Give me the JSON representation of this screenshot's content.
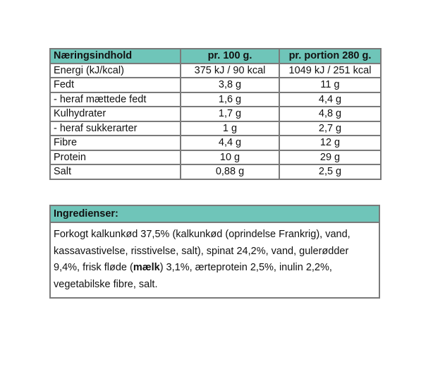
{
  "nutrition": {
    "headers": [
      "Næringsindhold",
      "pr. 100 g.",
      "pr. portion 280 g."
    ],
    "rows": [
      {
        "label": "Energi (kJ/kcal)",
        "per100": "375 kJ / 90 kcal",
        "perPortion": "1049 kJ / 251 kcal"
      },
      {
        "label": "Fedt",
        "per100": "3,8 g",
        "perPortion": "11 g"
      },
      {
        "label": " - heraf mættede fedt",
        "per100": "1,6 g",
        "perPortion": "4,4 g"
      },
      {
        "label": "Kulhydrater",
        "per100": "1,7 g",
        "perPortion": "4,8 g"
      },
      {
        "label": " - heraf sukkerarter",
        "per100": "1 g",
        "perPortion": "2,7 g"
      },
      {
        "label": "Fibre",
        "per100": "4,4 g",
        "perPortion": "12 g"
      },
      {
        "label": "Protein",
        "per100": "10 g",
        "perPortion": "29 g"
      },
      {
        "label": "Salt",
        "per100": "0,88 g",
        "perPortion": "2,5 g"
      }
    ]
  },
  "ingredients": {
    "title": "Ingredienser:",
    "text_before": "Forkogt kalkunkød 37,5% (kalkunkød (oprindelse Frankrig), vand, kassavastivelse, risstivelse, salt), spinat 24,2%, vand, gulerødder 9,4%, frisk fløde (",
    "allergen": "mælk",
    "text_after": ") 3,1%, ærteprotein 2,5%, inulin 2,2%, vegetabilske fibre, salt."
  },
  "colors": {
    "header_bg": "#6fc5b9",
    "border": "#7a7a7a"
  }
}
